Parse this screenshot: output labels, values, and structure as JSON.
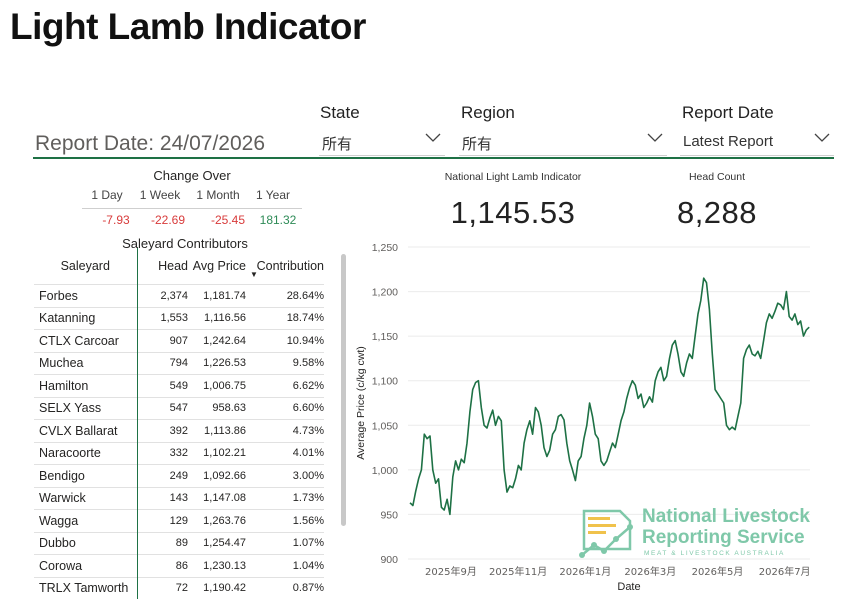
{
  "page": {
    "title": "Light Lamb Indicator"
  },
  "report_date_label": "Report Date: 24/07/2026",
  "filters": {
    "state": {
      "label": "State",
      "value": "所有"
    },
    "region": {
      "label": "Region",
      "value": "所有"
    },
    "report_date": {
      "label": "Report Date",
      "value": "Latest Report"
    }
  },
  "change_over": {
    "title": "Change Over",
    "headers": [
      "1 Day",
      "1 Week",
      "1 Month",
      "1 Year"
    ],
    "values": [
      "-7.93",
      "-22.69",
      "-25.45",
      "181.32"
    ],
    "colors": {
      "negative": "#d83b3b",
      "positive": "#2e8b57"
    }
  },
  "kpis": {
    "indicator": {
      "label": "National Light Lamb Indicator",
      "value": "1,145.53"
    },
    "head_count": {
      "label": "Head Count",
      "value": "8,288"
    }
  },
  "saleyards": {
    "title": "Saleyard Contributors",
    "columns": [
      "Saleyard",
      "Head",
      "Avg Price",
      "Contribution"
    ],
    "sort_indicator": "▼",
    "rows": [
      [
        "Forbes",
        "2,374",
        "1,181.74",
        "28.64%"
      ],
      [
        "Katanning",
        "1,553",
        "1,116.56",
        "18.74%"
      ],
      [
        "CTLX Carcoar",
        "907",
        "1,242.64",
        "10.94%"
      ],
      [
        "Muchea",
        "794",
        "1,226.53",
        "9.58%"
      ],
      [
        "Hamilton",
        "549",
        "1,006.75",
        "6.62%"
      ],
      [
        "SELX Yass",
        "547",
        "958.63",
        "6.60%"
      ],
      [
        "CVLX Ballarat",
        "392",
        "1,113.86",
        "4.73%"
      ],
      [
        "Naracoorte",
        "332",
        "1,102.21",
        "4.01%"
      ],
      [
        "Bendigo",
        "249",
        "1,092.66",
        "3.00%"
      ],
      [
        "Warwick",
        "143",
        "1,147.08",
        "1.73%"
      ],
      [
        "Wagga",
        "129",
        "1,263.76",
        "1.56%"
      ],
      [
        "Dubbo",
        "89",
        "1,254.47",
        "1.07%"
      ],
      [
        "Corowa",
        "86",
        "1,230.13",
        "1.04%"
      ],
      [
        "TRLX Tamworth",
        "72",
        "1,190.42",
        "0.87%"
      ]
    ]
  },
  "logo": {
    "line1": "National Livestock",
    "line2": "Reporting Service",
    "tagline": "MEAT & LIVESTOCK AUSTRALIA",
    "color": "#7fc8a9"
  },
  "chart_data": {
    "type": "line",
    "xlabel": "Date",
    "ylabel": "Average Price (c/kg cwt)",
    "ylim": [
      900,
      1250
    ],
    "yticks": [
      "900",
      "950",
      "1,000",
      "1,050",
      "1,100",
      "1,150",
      "1,200",
      "1,250"
    ],
    "xticks": [
      "2025年9月",
      "2025年11月",
      "2026年1月",
      "2026年3月",
      "2026年5月",
      "2026年7月"
    ],
    "x_start": "2025-07-24",
    "x_end": "2026-07-24",
    "grid": true,
    "line_color": "#1e7145",
    "series": [
      {
        "values": [
          963,
          960,
          976,
          990,
          1000,
          1040,
          1035,
          1038,
          1000,
          985,
          990,
          958,
          955,
          967,
          950,
          992,
          1010,
          1000,
          1012,
          1008,
          1030,
          1065,
          1090,
          1098,
          1100,
          1070,
          1050,
          1047,
          1058,
          1067,
          1050,
          1060,
          1055,
          1000,
          975,
          982,
          980,
          990,
          1005,
          1000,
          1030,
          1045,
          1055,
          1040,
          1070,
          1065,
          1050,
          1025,
          1015,
          1022,
          1040,
          1045,
          1060,
          1062,
          1056,
          1030,
          1010,
          1000,
          988,
          1010,
          1015,
          1035,
          1050,
          1075,
          1060,
          1040,
          1035,
          1010,
          1005,
          1010,
          1020,
          1030,
          1025,
          1040,
          1055,
          1065,
          1080,
          1092,
          1100,
          1095,
          1080,
          1085,
          1070,
          1075,
          1082,
          1076,
          1100,
          1110,
          1115,
          1100,
          1105,
          1125,
          1140,
          1145,
          1130,
          1110,
          1105,
          1120,
          1130,
          1125,
          1150,
          1175,
          1190,
          1215,
          1210,
          1180,
          1130,
          1090,
          1085,
          1080,
          1075,
          1050,
          1045,
          1048,
          1045,
          1060,
          1075,
          1125,
          1135,
          1140,
          1130,
          1128,
          1133,
          1125,
          1145,
          1165,
          1175,
          1170,
          1178,
          1187,
          1185,
          1180,
          1200,
          1172,
          1168,
          1175,
          1163,
          1167,
          1150,
          1157,
          1160
        ]
      }
    ]
  }
}
